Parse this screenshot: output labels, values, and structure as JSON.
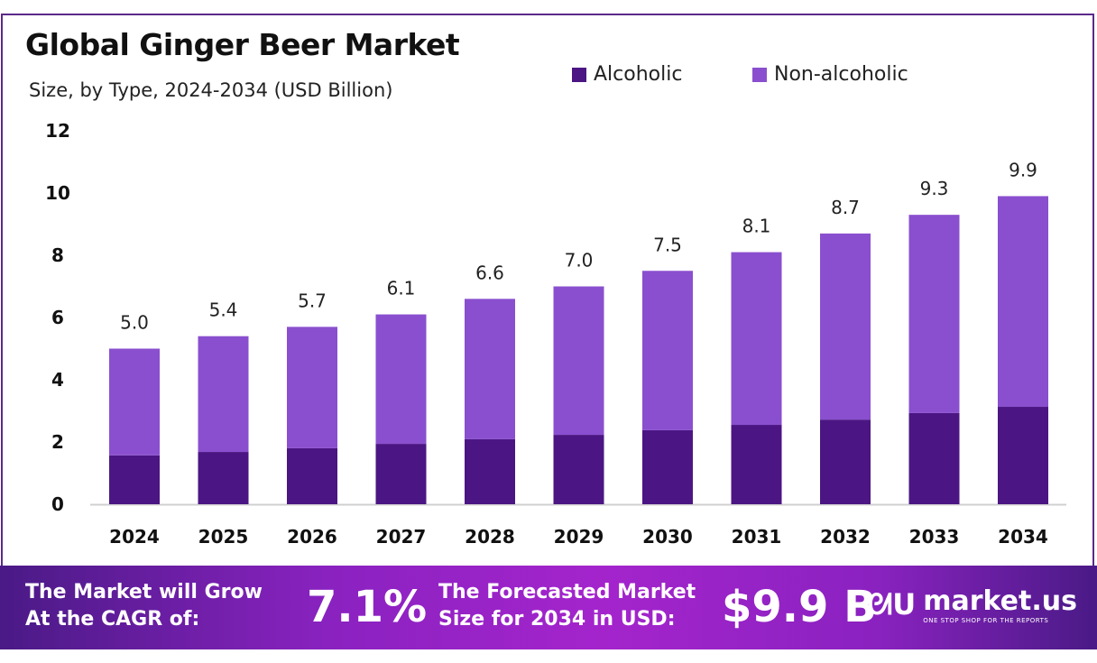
{
  "chart_data": {
    "type": "bar",
    "stacked": true,
    "title": "Global Ginger Beer Market",
    "subtitle": "Size, by Type, 2024-2034 (USD Billion)",
    "categories": [
      "2024",
      "2025",
      "2026",
      "2027",
      "2028",
      "2029",
      "2030",
      "2031",
      "2032",
      "2033",
      "2034"
    ],
    "series": [
      {
        "name": "Alcoholic",
        "color": "#4b1683",
        "values": [
          1.57,
          1.68,
          1.8,
          1.94,
          2.09,
          2.23,
          2.38,
          2.55,
          2.72,
          2.93,
          3.13
        ]
      },
      {
        "name": "Non-alcoholic",
        "color": "#8a4fcf",
        "values": [
          3.43,
          3.72,
          3.9,
          4.16,
          4.51,
          4.77,
          5.12,
          5.55,
          5.98,
          6.37,
          6.77
        ]
      }
    ],
    "totals": [
      "5.0",
      "5.4",
      "5.7",
      "6.1",
      "6.6",
      "7.0",
      "7.5",
      "8.1",
      "8.7",
      "9.3",
      "9.9"
    ],
    "ylim": [
      0,
      12
    ],
    "yticks": [
      "0",
      "2",
      "4",
      "6",
      "8",
      "10",
      "12"
    ],
    "grid": false,
    "legend": "top-right"
  },
  "footer": {
    "cagr_label_1": "The Market will Grow",
    "cagr_label_2": "At the CAGR of:",
    "cagr_value": "7.1%",
    "forecast_label_1": "The Forecasted Market",
    "forecast_label_2": "Size for 2034 in USD:",
    "forecast_value": "$9.9 B",
    "brand": "market.us",
    "tagline": "ONE STOP SHOP FOR THE REPORTS"
  }
}
